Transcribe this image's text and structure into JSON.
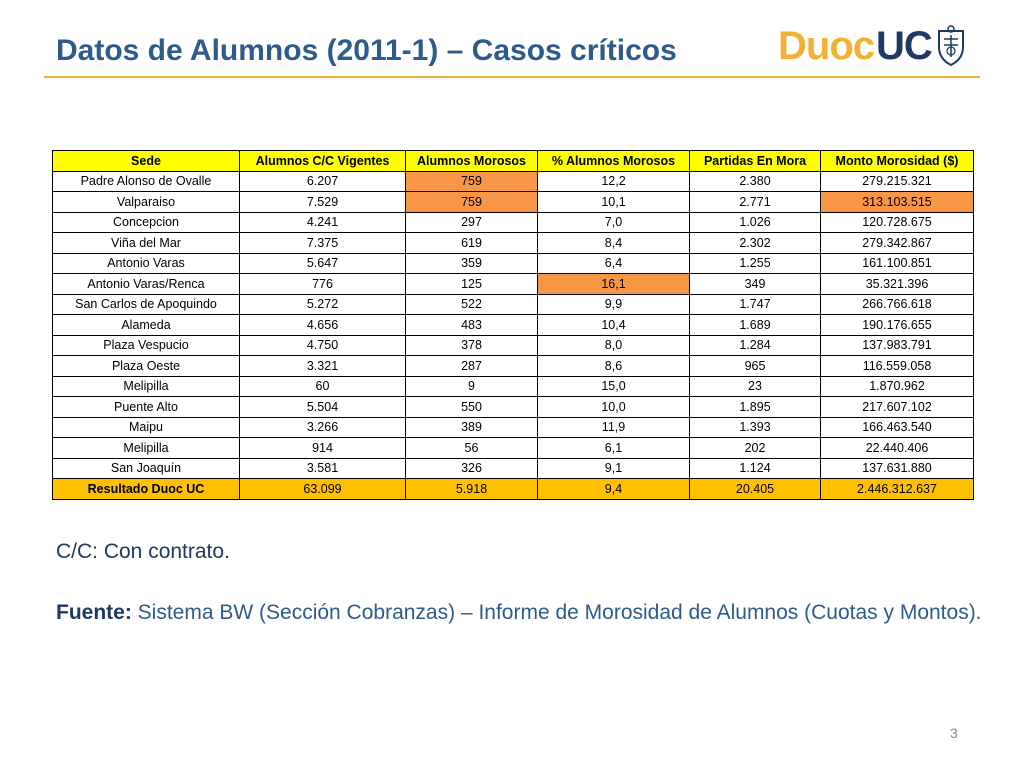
{
  "title": "Datos de Alumnos (2011-1) – Casos críticos",
  "logo": {
    "part1": "Duoc",
    "part2": "UC"
  },
  "colors": {
    "accent": "#f2b134",
    "title": "#2e5a8c",
    "header_fill": "#ffff00",
    "highlight": "#f79646",
    "total_fill": "#ffc000"
  },
  "table": {
    "headers": [
      "Sede",
      "Alumnos C/C Vigentes",
      "Alumnos Morosos",
      "% Alumnos Morosos",
      "Partidas En Mora",
      "Monto Morosidad ($)"
    ],
    "rows": [
      [
        "Padre Alonso de Ovalle",
        "6.207",
        "759",
        "12,2",
        "2.380",
        "279.215.321"
      ],
      [
        "Valparaiso",
        "7.529",
        "759",
        "10,1",
        "2.771",
        "313.103.515"
      ],
      [
        "Concepcion",
        "4.241",
        "297",
        "7,0",
        "1.026",
        "120.728.675"
      ],
      [
        "Viña del Mar",
        "7.375",
        "619",
        "8,4",
        "2.302",
        "279.342.867"
      ],
      [
        "Antonio Varas",
        "5.647",
        "359",
        "6,4",
        "1.255",
        "161.100.851"
      ],
      [
        "Antonio Varas/Renca",
        "776",
        "125",
        "16,1",
        "349",
        "35.321.396"
      ],
      [
        "San Carlos de Apoquindo",
        "5.272",
        "522",
        "9,9",
        "1.747",
        "266.766.618"
      ],
      [
        "Alameda",
        "4.656",
        "483",
        "10,4",
        "1.689",
        "190.176.655"
      ],
      [
        "Plaza Vespucio",
        "4.750",
        "378",
        "8,0",
        "1.284",
        "137.983.791"
      ],
      [
        "Plaza Oeste",
        "3.321",
        "287",
        "8,6",
        "965",
        "116.559.058"
      ],
      [
        "Melipilla",
        "60",
        "9",
        "15,0",
        "23",
        "1.870.962"
      ],
      [
        "Puente Alto",
        "5.504",
        "550",
        "10,0",
        "1.895",
        "217.607.102"
      ],
      [
        "Maipu",
        "3.266",
        "389",
        "11,9",
        "1.393",
        "166.463.540"
      ],
      [
        "Melipilla",
        "914",
        "56",
        "6,1",
        "202",
        "22.440.406"
      ],
      [
        "San Joaquín",
        "3.581",
        "326",
        "9,1",
        "1.124",
        "137.631.880"
      ]
    ],
    "highlighted_cells": [
      [
        0,
        2
      ],
      [
        1,
        2
      ],
      [
        1,
        5
      ],
      [
        5,
        3
      ]
    ],
    "total": [
      "Resultado Duoc UC",
      "63.099",
      "5.918",
      "9,4",
      "20.405",
      "2.446.312.637"
    ]
  },
  "note": "C/C: Con contrato.",
  "source": {
    "label": "Fuente:",
    "text": " Sistema BW (Sección Cobranzas) – Informe de Morosidad de Alumnos (Cuotas y Montos)."
  },
  "page_number": "3"
}
